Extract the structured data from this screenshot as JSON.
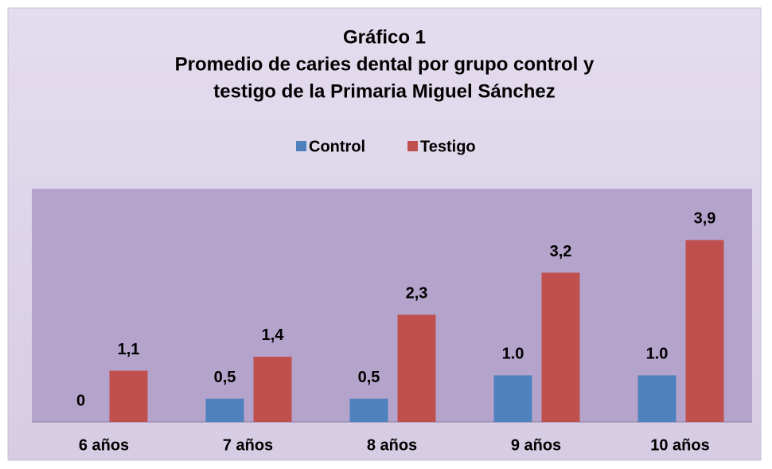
{
  "chart_data": {
    "type": "bar",
    "title": [
      "Gráfico 1",
      "Promedio de caries dental por grupo control y",
      "testigo de la Primaria Miguel Sánchez"
    ],
    "categories": [
      "6 años",
      "7 años",
      "8 años",
      "9 años",
      "10 años"
    ],
    "series": [
      {
        "name": "Control",
        "color": "#4f81bd",
        "values": [
          0,
          0.5,
          0.5,
          1.0,
          1.0
        ],
        "value_labels": [
          "0",
          "0,5",
          "0,5",
          "1.0",
          "1.0"
        ]
      },
      {
        "name": "Testigo",
        "color": "#c0504d",
        "values": [
          1.1,
          1.4,
          2.3,
          3.2,
          3.9
        ],
        "value_labels": [
          "1,1",
          "1,4",
          "2,3",
          "3,2",
          "3,9"
        ]
      }
    ],
    "ylim": [
      0,
      5
    ],
    "legend": "top"
  }
}
